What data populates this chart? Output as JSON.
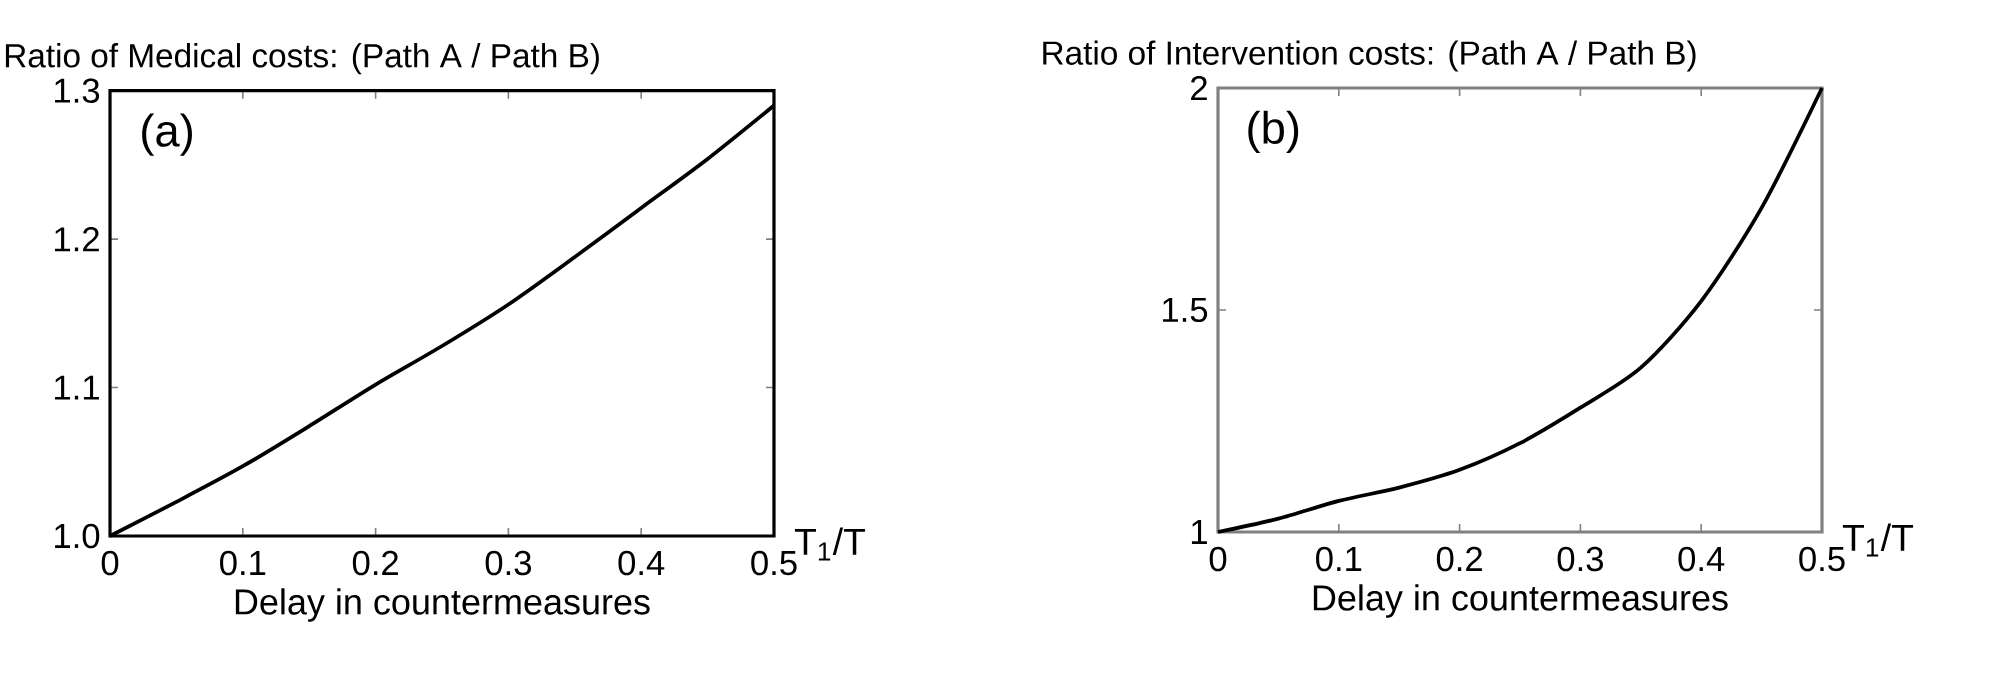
{
  "chart_data": [
    {
      "type": "line",
      "title": "Ratio of Medical costs: (Path A / Path B)",
      "xlabel": "Delay in countermeasures",
      "annotations": [
        "(a)",
        "T$_{1}$/T"
      ],
      "x": [
        0,
        0.05,
        0.1,
        0.15,
        0.2,
        0.25,
        0.3,
        0.35,
        0.4,
        0.45,
        0.5
      ],
      "series": [
        {
          "color": "#000000",
          "values": [
            1.0,
            1.023,
            1.047,
            1.074,
            1.102,
            1.128,
            1.156,
            1.188,
            1.221,
            1.254,
            1.29
          ]
        }
      ],
      "xlim": [
        0,
        0.5
      ],
      "ylim": [
        1.0,
        1.3
      ],
      "xticks": [
        0,
        0.1,
        0.2,
        0.3,
        0.4,
        0.5
      ],
      "yticks": [
        {
          "value": 1.0,
          "label": "1.0"
        },
        1.1,
        1.2,
        1.3
      ]
    },
    {
      "type": "line",
      "title": "Ratio of Intervention costs: (Path A / Path B)",
      "xlabel": "Delay in countermeasures",
      "annotations": [
        "(b)",
        "T$_{1}$/T"
      ],
      "x": [
        0,
        0.05,
        0.1,
        0.15,
        0.2,
        0.25,
        0.3,
        0.35,
        0.4,
        0.45,
        0.5
      ],
      "series": [
        {
          "color": "#000000",
          "values": [
            1.0,
            1.03,
            1.07,
            1.1,
            1.14,
            1.2,
            1.28,
            1.37,
            1.52,
            1.73,
            2.0
          ]
        }
      ],
      "xlim": [
        0,
        0.5
      ],
      "ylim": [
        1,
        2
      ],
      "xticks": [
        0,
        0.1,
        0.2,
        0.3,
        0.4,
        0.5
      ],
      "yticks": [
        1,
        1.5,
        2
      ]
    }
  ]
}
